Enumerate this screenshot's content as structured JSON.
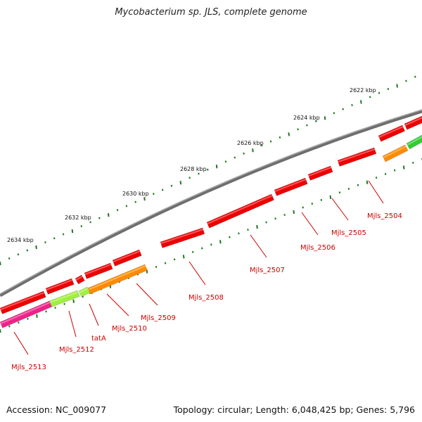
{
  "title": "Mycobacterium sp. JLS, complete genome",
  "footer": {
    "accession": "Accession: NC_009077",
    "summary": "Topology: circular; Length: 6,048,425 bp; Genes: 5,796"
  },
  "colors": {
    "backbone": "#7a7a7a",
    "tick": "#1f7a1f",
    "gene_red": "#ee0000",
    "gene_orange": "#ff8c00",
    "gene_lime": "#a0f03c",
    "gene_magenta": "#ee2288",
    "gene_green": "#33cc33",
    "label": "#cc0000"
  },
  "scale_labels": [
    {
      "text": "2622 kbp",
      "kbp": 2622
    },
    {
      "text": "2624 kbp",
      "kbp": 2624
    },
    {
      "text": "2626 kbp",
      "kbp": 2626
    },
    {
      "text": "2628 kbp",
      "kbp": 2628
    },
    {
      "text": "2630 kbp",
      "kbp": 2630
    },
    {
      "text": "2632 kbp",
      "kbp": 2632
    },
    {
      "text": "2634 kbp",
      "kbp": 2634
    }
  ],
  "gene_labels": [
    "Mjls_2504",
    "Mjls_2505",
    "Mjls_2506",
    "Mjls_2507",
    "Mjls_2508",
    "Mjls_2509",
    "Mjls_2510",
    "tatA",
    "Mjls_2512",
    "Mjls_2513"
  ]
}
